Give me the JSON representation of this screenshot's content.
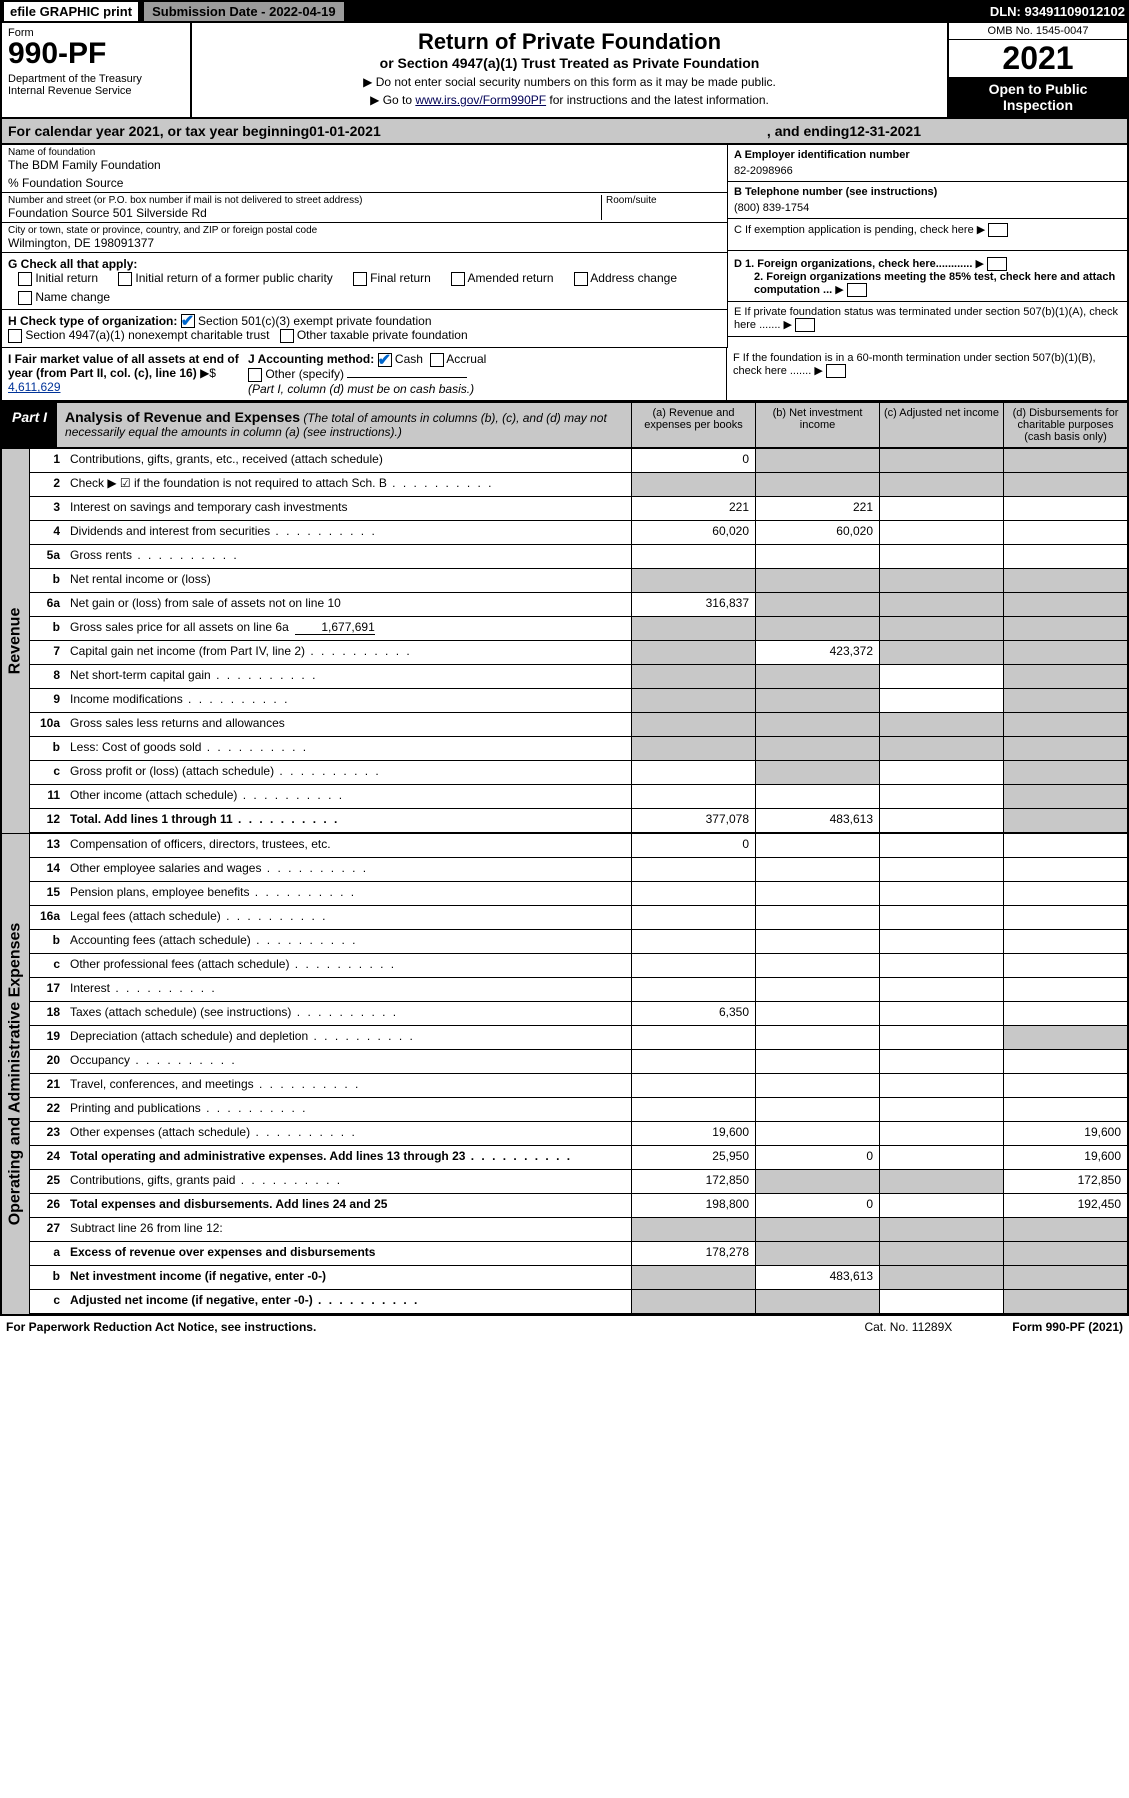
{
  "topbar": {
    "efile": "efile GRAPHIC print",
    "submission": "Submission Date - 2022-04-19",
    "dln": "DLN: 93491109012102"
  },
  "header": {
    "form_label": "Form",
    "form_number": "990-PF",
    "dept": "Department of the Treasury\nInternal Revenue Service",
    "title": "Return of Private Foundation",
    "subtitle": "or Section 4947(a)(1) Trust Treated as Private Foundation",
    "note1": "▶ Do not enter social security numbers on this form as it may be made public.",
    "note2_pre": "▶ Go to ",
    "note2_link": "www.irs.gov/Form990PF",
    "note2_post": " for instructions and the latest information.",
    "omb": "OMB No. 1545-0047",
    "year": "2021",
    "open": "Open to Public Inspection"
  },
  "calyear": {
    "pre": "For calendar year 2021, or tax year beginning ",
    "begin": "01-01-2021",
    "mid": " , and ending ",
    "end": "12-31-2021"
  },
  "info": {
    "name_label": "Name of foundation",
    "name": "The BDM Family Foundation",
    "care_of": "% Foundation Source",
    "addr_label": "Number and street (or P.O. box number if mail is not delivered to street address)",
    "addr": "Foundation Source 501 Silverside Rd",
    "room_label": "Room/suite",
    "city_label": "City or town, state or province, country, and ZIP or foreign postal code",
    "city": "Wilmington, DE  198091377",
    "ein_label": "A Employer identification number",
    "ein": "82-2098966",
    "phone_label": "B Telephone number (see instructions)",
    "phone": "(800) 839-1754",
    "c_label": "C If exemption application is pending, check here",
    "d1": "D 1. Foreign organizations, check here............",
    "d2": "2. Foreign organizations meeting the 85% test, check here and attach computation ...",
    "e_label": "E  If private foundation status was terminated under section 507(b)(1)(A), check here .......",
    "f_label": "F  If the foundation is in a 60-month termination under section 507(b)(1)(B), check here .......",
    "g_label": "G Check all that apply:",
    "g_opts": [
      "Initial return",
      "Initial return of a former public charity",
      "Final return",
      "Amended return",
      "Address change",
      "Name change"
    ],
    "h_label": "H Check type of organization:",
    "h_opts": [
      "Section 501(c)(3) exempt private foundation",
      "Section 4947(a)(1) nonexempt charitable trust",
      "Other taxable private foundation"
    ],
    "i_label": "I Fair market value of all assets at end of year (from Part II, col. (c), line 16)",
    "i_val": "4,611,629",
    "j_label": "J Accounting method:",
    "j_opts": [
      "Cash",
      "Accrual",
      "Other (specify)"
    ],
    "j_note": "(Part I, column (d) must be on cash basis.)"
  },
  "part1": {
    "label": "Part I",
    "title": "Analysis of Revenue and Expenses",
    "title_note": " (The total of amounts in columns (b), (c), and (d) may not necessarily equal the amounts in column (a) (see instructions).)",
    "col_a": "(a)  Revenue and expenses per books",
    "col_b": "(b)  Net investment income",
    "col_c": "(c)  Adjusted net income",
    "col_d": "(d)  Disbursements for charitable purposes (cash basis only)"
  },
  "side_labels": {
    "revenue": "Revenue",
    "expenses": "Operating and Administrative Expenses"
  },
  "rows": [
    {
      "n": "1",
      "d": "Contributions, gifts, grants, etc., received (attach schedule)",
      "a": "0",
      "grey_bcd": true
    },
    {
      "n": "2",
      "d": "Check ▶ ☑ if the foundation is not required to attach Sch. B",
      "dots": true,
      "grey_all": true
    },
    {
      "n": "3",
      "d": "Interest on savings and temporary cash investments",
      "a": "221",
      "b": "221"
    },
    {
      "n": "4",
      "d": "Dividends and interest from securities",
      "dots": true,
      "a": "60,020",
      "b": "60,020"
    },
    {
      "n": "5a",
      "d": "Gross rents",
      "dots": true
    },
    {
      "n": "b",
      "d": "Net rental income or (loss)",
      "underline": true,
      "grey_all": true
    },
    {
      "n": "6a",
      "d": "Net gain or (loss) from sale of assets not on line 10",
      "a": "316,837",
      "grey_bcd": true
    },
    {
      "n": "b",
      "d": "Gross sales price for all assets on line 6a",
      "inline_val": "1,677,691",
      "grey_all": true
    },
    {
      "n": "7",
      "d": "Capital gain net income (from Part IV, line 2)",
      "dots": true,
      "grey_a": true,
      "b": "423,372",
      "grey_cd": true
    },
    {
      "n": "8",
      "d": "Net short-term capital gain",
      "dots": true,
      "grey_ab": true,
      "grey_d": true
    },
    {
      "n": "9",
      "d": "Income modifications",
      "dots": true,
      "grey_ab": true,
      "grey_d": true
    },
    {
      "n": "10a",
      "d": "Gross sales less returns and allowances",
      "underline": true,
      "grey_all": true
    },
    {
      "n": "b",
      "d": "Less: Cost of goods sold",
      "dots": true,
      "underline": true,
      "grey_all": true
    },
    {
      "n": "c",
      "d": "Gross profit or (loss) (attach schedule)",
      "dots": true,
      "grey_b": true,
      "grey_d": true
    },
    {
      "n": "11",
      "d": "Other income (attach schedule)",
      "dots": true,
      "grey_d": true
    },
    {
      "n": "12",
      "d": "Total. Add lines 1 through 11",
      "dots": true,
      "bold": true,
      "a": "377,078",
      "b": "483,613",
      "grey_d": true
    }
  ],
  "exp_rows": [
    {
      "n": "13",
      "d": "Compensation of officers, directors, trustees, etc.",
      "a": "0"
    },
    {
      "n": "14",
      "d": "Other employee salaries and wages",
      "dots": true
    },
    {
      "n": "15",
      "d": "Pension plans, employee benefits",
      "dots": true
    },
    {
      "n": "16a",
      "d": "Legal fees (attach schedule)",
      "dots": true
    },
    {
      "n": "b",
      "d": "Accounting fees (attach schedule)",
      "dots": true
    },
    {
      "n": "c",
      "d": "Other professional fees (attach schedule)",
      "dots": true
    },
    {
      "n": "17",
      "d": "Interest",
      "dots": true
    },
    {
      "n": "18",
      "d": "Taxes (attach schedule) (see instructions)",
      "dots": true,
      "a": "6,350"
    },
    {
      "n": "19",
      "d": "Depreciation (attach schedule) and depletion",
      "dots": true,
      "grey_d": true
    },
    {
      "n": "20",
      "d": "Occupancy",
      "dots": true
    },
    {
      "n": "21",
      "d": "Travel, conferences, and meetings",
      "dots": true
    },
    {
      "n": "22",
      "d": "Printing and publications",
      "dots": true
    },
    {
      "n": "23",
      "d": "Other expenses (attach schedule)",
      "dots": true,
      "a": "19,600",
      "dd": "19,600"
    },
    {
      "n": "24",
      "d": "Total operating and administrative expenses. Add lines 13 through 23",
      "dots": true,
      "bold": true,
      "a": "25,950",
      "b": "0",
      "dd": "19,600"
    },
    {
      "n": "25",
      "d": "Contributions, gifts, grants paid",
      "dots": true,
      "a": "172,850",
      "grey_bc": true,
      "dd": "172,850"
    },
    {
      "n": "26",
      "d": "Total expenses and disbursements. Add lines 24 and 25",
      "bold": true,
      "a": "198,800",
      "b": "0",
      "dd": "192,450"
    },
    {
      "n": "27",
      "d": "Subtract line 26 from line 12:",
      "grey_all": true
    },
    {
      "n": "a",
      "d": "Excess of revenue over expenses and disbursements",
      "bold": true,
      "a": "178,278",
      "grey_bcd": true
    },
    {
      "n": "b",
      "d": "Net investment income (if negative, enter -0-)",
      "bold": true,
      "grey_a": true,
      "b": "483,613",
      "grey_cd": true
    },
    {
      "n": "c",
      "d": "Adjusted net income (if negative, enter -0-)",
      "dots": true,
      "bold": true,
      "grey_ab": true,
      "grey_d": true
    }
  ],
  "footer": {
    "pra": "For Paperwork Reduction Act Notice, see instructions.",
    "cat": "Cat. No. 11289X",
    "form": "Form 990-PF (2021)"
  }
}
